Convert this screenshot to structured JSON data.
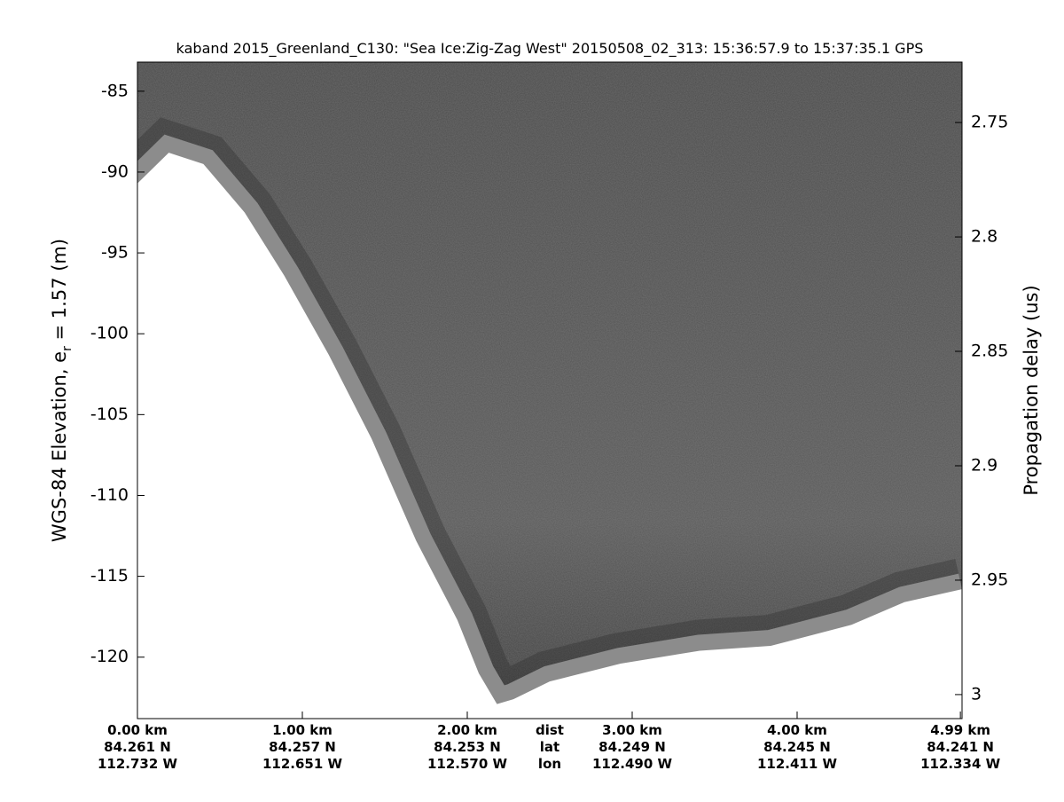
{
  "chart_data": {
    "type": "echogram",
    "title": "kaband 2015_Greenland_C130: \"Sea Ice:Zig-Zag West\"  20150508_02_313: 15:36:57.9 to 15:37:35.1 GPS",
    "ylabel": [
      "WGS-84 Elevation, e",
      "r",
      " = 1.57 (m)"
    ],
    "y2label": "Propagation delay (us)",
    "xlim": [
      0,
      5.0
    ],
    "ylim": [
      -123.8,
      -83.2
    ],
    "yticks": [
      -120,
      -115,
      -110,
      -105,
      -100,
      -95,
      -90,
      -85
    ],
    "y2lim": [
      3.0105,
      2.7236
    ],
    "y2ticks": [
      2.75,
      2.8,
      2.85,
      2.9,
      2.95,
      3
    ],
    "xticks": [
      {
        "value": 0,
        "label": "0.00 km"
      },
      {
        "value": 1,
        "label": "1.00 km"
      },
      {
        "value": 2,
        "label": "2.00 km"
      },
      {
        "value": 3,
        "label": "3.00 km"
      },
      {
        "value": 4,
        "label": "4.00 km"
      },
      {
        "value": 4.99,
        "label": "4.99 km"
      }
    ],
    "lat_labels": [
      "84.261 N",
      "84.257 N",
      "84.253 N",
      "84.249 N",
      "84.245 N",
      "84.241 N"
    ],
    "lon_labels": [
      "112.732 W",
      "112.651 W",
      "112.570 W",
      "112.490 W",
      "112.411 W",
      "112.334 W"
    ],
    "row_names": [
      "dist",
      "lat",
      "lon"
    ],
    "surface": {
      "x": [
        0,
        0.19,
        0.4,
        0.65,
        0.89,
        1.16,
        1.42,
        1.69,
        1.94,
        2.07,
        2.18,
        2.28,
        2.5,
        2.93,
        3.41,
        3.84,
        4.33,
        4.65,
        5.0
      ],
      "y": [
        -90.7,
        -88.8,
        -89.5,
        -92.5,
        -96.4,
        -101.3,
        -106.5,
        -112.8,
        -117.7,
        -121,
        -122.9,
        -122.6,
        -121.5,
        -120.4,
        -119.6,
        -119.3,
        -118,
        -116.6,
        -115.8
      ]
    }
  }
}
